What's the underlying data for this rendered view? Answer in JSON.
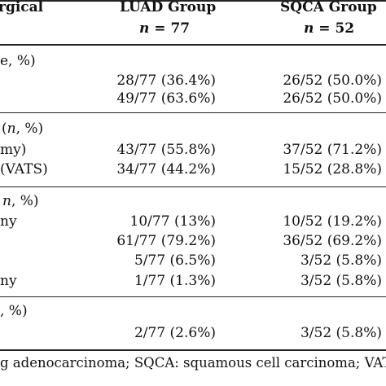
{
  "table": {
    "header": {
      "col0": "rgical",
      "col1_line1": "LUAD Group",
      "col1_n_label": "n",
      "col1_n_value": " = 77",
      "col2_line1": "SQCA Group",
      "col2_n_label": "n",
      "col2_n_value": " = 52"
    },
    "sections": [
      {
        "heading": "e, %)",
        "rows": [
          {
            "label": "",
            "luad": "28/77 (36.4%)",
            "sqca": "26/52 (50.0%)"
          },
          {
            "label": "",
            "luad": "49/77 (63.6%)",
            "sqca": "26/52 (50.0%)"
          }
        ]
      },
      {
        "heading_pre": "(",
        "heading_n": "n",
        "heading_post": ", %)",
        "rows": [
          {
            "label": "my)",
            "luad": "43/77 (55.8%)",
            "sqca": "37/52 (71.2%)"
          },
          {
            "label": "(VATS)",
            "luad": "34/77 (44.2%)",
            "sqca": "15/52 (28.8%)"
          }
        ]
      },
      {
        "heading_n": "n",
        "heading_post": ", %)",
        "rows": [
          {
            "label": "ny",
            "luad": "10/77 (13%)",
            "sqca": "10/52 (19.2%)"
          },
          {
            "label": "",
            "luad": "61/77 (79.2%)",
            "sqca": "36/52 (69.2%)"
          },
          {
            "label": "",
            "luad": "5/77 (6.5%)",
            "sqca": "3/52 (5.8%)"
          },
          {
            "label": "ny",
            "luad": "1/77 (1.3%)",
            "sqca": "3/52 (5.8%)"
          }
        ]
      },
      {
        "heading": ", %)",
        "rows": [
          {
            "label": "",
            "luad": "2/77 (2.6%)",
            "sqca": "3/52 (5.8%)"
          }
        ]
      }
    ],
    "footnote": "g adenocarcinoma; SQCA: squamous cell carcinoma; VAT"
  }
}
